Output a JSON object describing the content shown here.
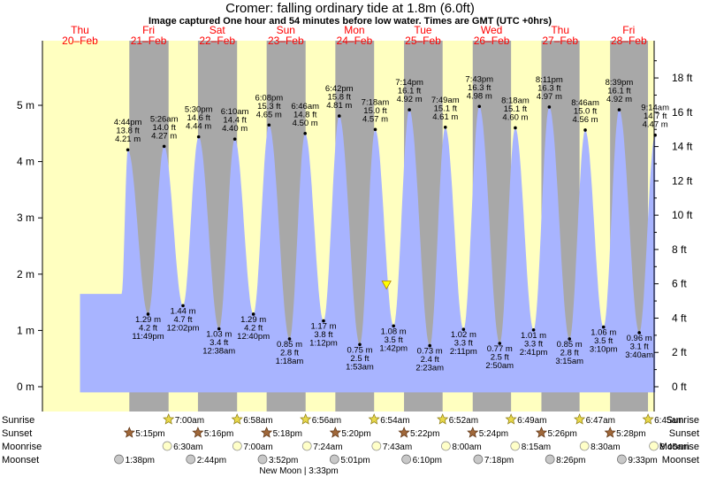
{
  "title": "Cromer: falling  ordinary tide at 1.8m (6.0ft)",
  "subtitle": "Image captured One hour and 54 minutes before low water. Times are GMT (UTC +0hrs)",
  "days": [
    {
      "dow": "Thu",
      "date": "20–Feb"
    },
    {
      "dow": "Fri",
      "date": "21–Feb"
    },
    {
      "dow": "Sat",
      "date": "22–Feb"
    },
    {
      "dow": "Sun",
      "date": "23–Feb"
    },
    {
      "dow": "Mon",
      "date": "24–Feb"
    },
    {
      "dow": "Tue",
      "date": "25–Feb"
    },
    {
      "dow": "Wed",
      "date": "26–Feb"
    },
    {
      "dow": "Thu",
      "date": "27–Feb"
    },
    {
      "dow": "Fri",
      "date": "28–Feb"
    }
  ],
  "row_labels": {
    "sunrise": "Sunrise",
    "sunset": "Sunset",
    "moonrise": "Moonrise",
    "moonset": "Moonset"
  },
  "sunrise": [
    "7:00am",
    "6:58am",
    "6:56am",
    "6:54am",
    "6:52am",
    "6:49am",
    "6:47am",
    "6:45am"
  ],
  "sunset": [
    "5:15pm",
    "5:16pm",
    "5:18pm",
    "5:20pm",
    "5:22pm",
    "5:24pm",
    "5:26pm",
    "5:28pm"
  ],
  "moonrise": [
    "6:30am",
    "7:00am",
    "7:24am",
    "7:43am",
    "8:00am",
    "8:15am",
    "8:30am",
    "8:45am"
  ],
  "moonset": [
    "1:38pm",
    "2:44pm",
    "3:52pm",
    "5:01pm",
    "6:10pm",
    "7:18pm",
    "8:26pm",
    "9:33pm"
  ],
  "moon_phase": "New Moon | 3:33pm",
  "current_marker": {
    "height_m": 1.8
  },
  "colors": {
    "day": "#ffffc0",
    "night": "#a8a8a8",
    "water": "#a8b4ff",
    "weekend": "#ff0000",
    "weekday": "#000000",
    "dot": "#000000"
  },
  "chart_data": {
    "type": "area",
    "title": "Cromer: falling  ordinary tide at 1.8m (6.0ft)",
    "y_left_label": "m",
    "y_right_label": "ft",
    "y_left_ticks": [
      "0 m",
      "1 m",
      "2 m",
      "3 m",
      "4 m",
      "5 m"
    ],
    "y_right_ticks": [
      "0 ft",
      "2 ft",
      "4 ft",
      "6 ft",
      "8 ft",
      "10 ft",
      "12 ft",
      "14 ft",
      "16 ft",
      "18 ft"
    ],
    "ylim_m": [
      -0.3,
      5.95
    ],
    "tides": [
      {
        "type": "high",
        "time": "4:44 pm",
        "ft": "13.8 ft",
        "m": "4.21 m",
        "value": 4.21
      },
      {
        "type": "low",
        "time": "11:49 pm",
        "ft": "4.2 ft",
        "m": "1.29 m",
        "value": 1.29
      },
      {
        "type": "high",
        "time": "5:26 am",
        "ft": "14.0 ft",
        "m": "4.27 m",
        "value": 4.27
      },
      {
        "type": "low",
        "time": "12:02 pm",
        "ft": "4.7 ft",
        "m": "1.44 m",
        "value": 1.44
      },
      {
        "type": "high",
        "time": "5:30 pm",
        "ft": "14.6 ft",
        "m": "4.44 m",
        "value": 4.44
      },
      {
        "type": "low",
        "time": "12:38 am",
        "ft": "3.4 ft",
        "m": "1.03 m",
        "value": 1.03
      },
      {
        "type": "high",
        "time": "6:10 am",
        "ft": "14.4 ft",
        "m": "4.40 m",
        "value": 4.4
      },
      {
        "type": "low",
        "time": "12:40 pm",
        "ft": "4.2 ft",
        "m": "1.29 m",
        "value": 1.29
      },
      {
        "type": "high",
        "time": "6:08 pm",
        "ft": "15.3 ft",
        "m": "4.65 m",
        "value": 4.65
      },
      {
        "type": "low",
        "time": "1:18 am",
        "ft": "2.8 ft",
        "m": "0.85 m",
        "value": 0.85
      },
      {
        "type": "high",
        "time": "6:46 am",
        "ft": "14.8 ft",
        "m": "4.50 m",
        "value": 4.5
      },
      {
        "type": "low",
        "time": "1:12 pm",
        "ft": "3.8 ft",
        "m": "1.17 m",
        "value": 1.17
      },
      {
        "type": "high",
        "time": "6:42 pm",
        "ft": "15.8 ft",
        "m": "4.81 m",
        "value": 4.81
      },
      {
        "type": "low",
        "time": "1:53 am",
        "ft": "2.5 ft",
        "m": "0.75 m",
        "value": 0.75
      },
      {
        "type": "high",
        "time": "7:18 am",
        "ft": "15.0 ft",
        "m": "4.57 m",
        "value": 4.57
      },
      {
        "type": "low",
        "time": "1:42 pm",
        "ft": "3.5 ft",
        "m": "1.08 m",
        "value": 1.08
      },
      {
        "type": "high",
        "time": "7:14 pm",
        "ft": "16.1 ft",
        "m": "4.92 m",
        "value": 4.92
      },
      {
        "type": "low",
        "time": "2:23 am",
        "ft": "2.4 ft",
        "m": "0.73 m",
        "value": 0.73
      },
      {
        "type": "high",
        "time": "7:49 am",
        "ft": "15.1 ft",
        "m": "4.61 m",
        "value": 4.61
      },
      {
        "type": "low",
        "time": "2:11 pm",
        "ft": "3.3 ft",
        "m": "1.02 m",
        "value": 1.02
      },
      {
        "type": "high",
        "time": "7:43 pm",
        "ft": "16.3 ft",
        "m": "4.98 m",
        "value": 4.98
      },
      {
        "type": "low",
        "time": "2:50 am",
        "ft": "2.5 ft",
        "m": "0.77 m",
        "value": 0.77
      },
      {
        "type": "high",
        "time": "8:18 am",
        "ft": "15.1 ft",
        "m": "4.60 m",
        "value": 4.6
      },
      {
        "type": "low",
        "time": "2:41 pm",
        "ft": "3.3 ft",
        "m": "1.01 m",
        "value": 1.01
      },
      {
        "type": "high",
        "time": "8:11 pm",
        "ft": "16.3 ft",
        "m": "4.97 m",
        "value": 4.97
      },
      {
        "type": "low",
        "time": "3:15 am",
        "ft": "2.8 ft",
        "m": "0.85 m",
        "value": 0.85
      },
      {
        "type": "high",
        "time": "8:46 am",
        "ft": "15.0 ft",
        "m": "4.56 m",
        "value": 4.56
      },
      {
        "type": "low",
        "time": "3:10 pm",
        "ft": "3.5 ft",
        "m": "1.06 m",
        "value": 1.06
      },
      {
        "type": "high",
        "time": "8:39 pm",
        "ft": "16.1 ft",
        "m": "4.92 m",
        "value": 4.92
      },
      {
        "type": "low",
        "time": "3:40 am",
        "ft": "3.1 ft",
        "m": "0.96 m",
        "value": 0.96
      },
      {
        "type": "high",
        "time": "9:14 am",
        "ft": "14.7 ft",
        "m": "4.47 m",
        "value": 4.47
      }
    ]
  }
}
